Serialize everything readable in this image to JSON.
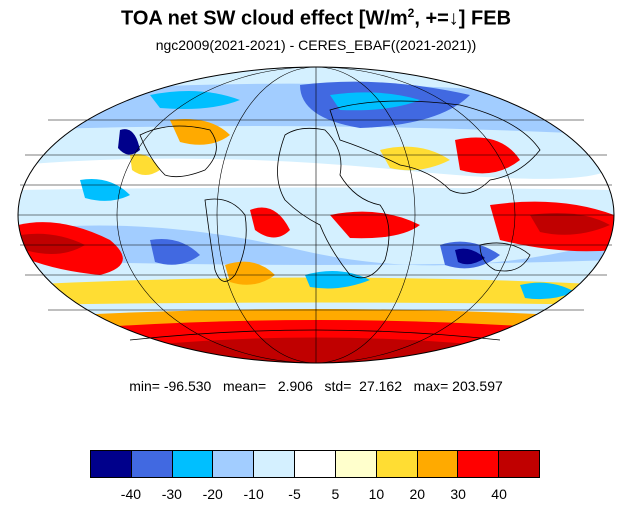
{
  "title": {
    "prefix": "TOA net SW cloud effect [W/m",
    "superscript": "2",
    "suffix": ", +=↓]  FEB"
  },
  "subtitle": "ngc2009(2021-2021) - CERES_EBAF((2021-2021))",
  "stats": {
    "text": "min= -96.530   mean=   2.906   std=  27.162   max= 203.597",
    "min": -96.53,
    "mean": 2.906,
    "std": 27.162,
    "max": 203.597
  },
  "colorbar": {
    "colors": [
      "#00008b",
      "#4169e1",
      "#00bfff",
      "#a2cdff",
      "#d4f0ff",
      "#ffffff",
      "#ffffcc",
      "#ffdd33",
      "#ffaa00",
      "#ff0000",
      "#c00000"
    ],
    "tick_labels": [
      "-40",
      "-30",
      "-20",
      "-10",
      "-5",
      "5",
      "10",
      "20",
      "30",
      "40"
    ]
  },
  "map": {
    "projection": "mollweide",
    "legend_placement": "bottom"
  }
}
